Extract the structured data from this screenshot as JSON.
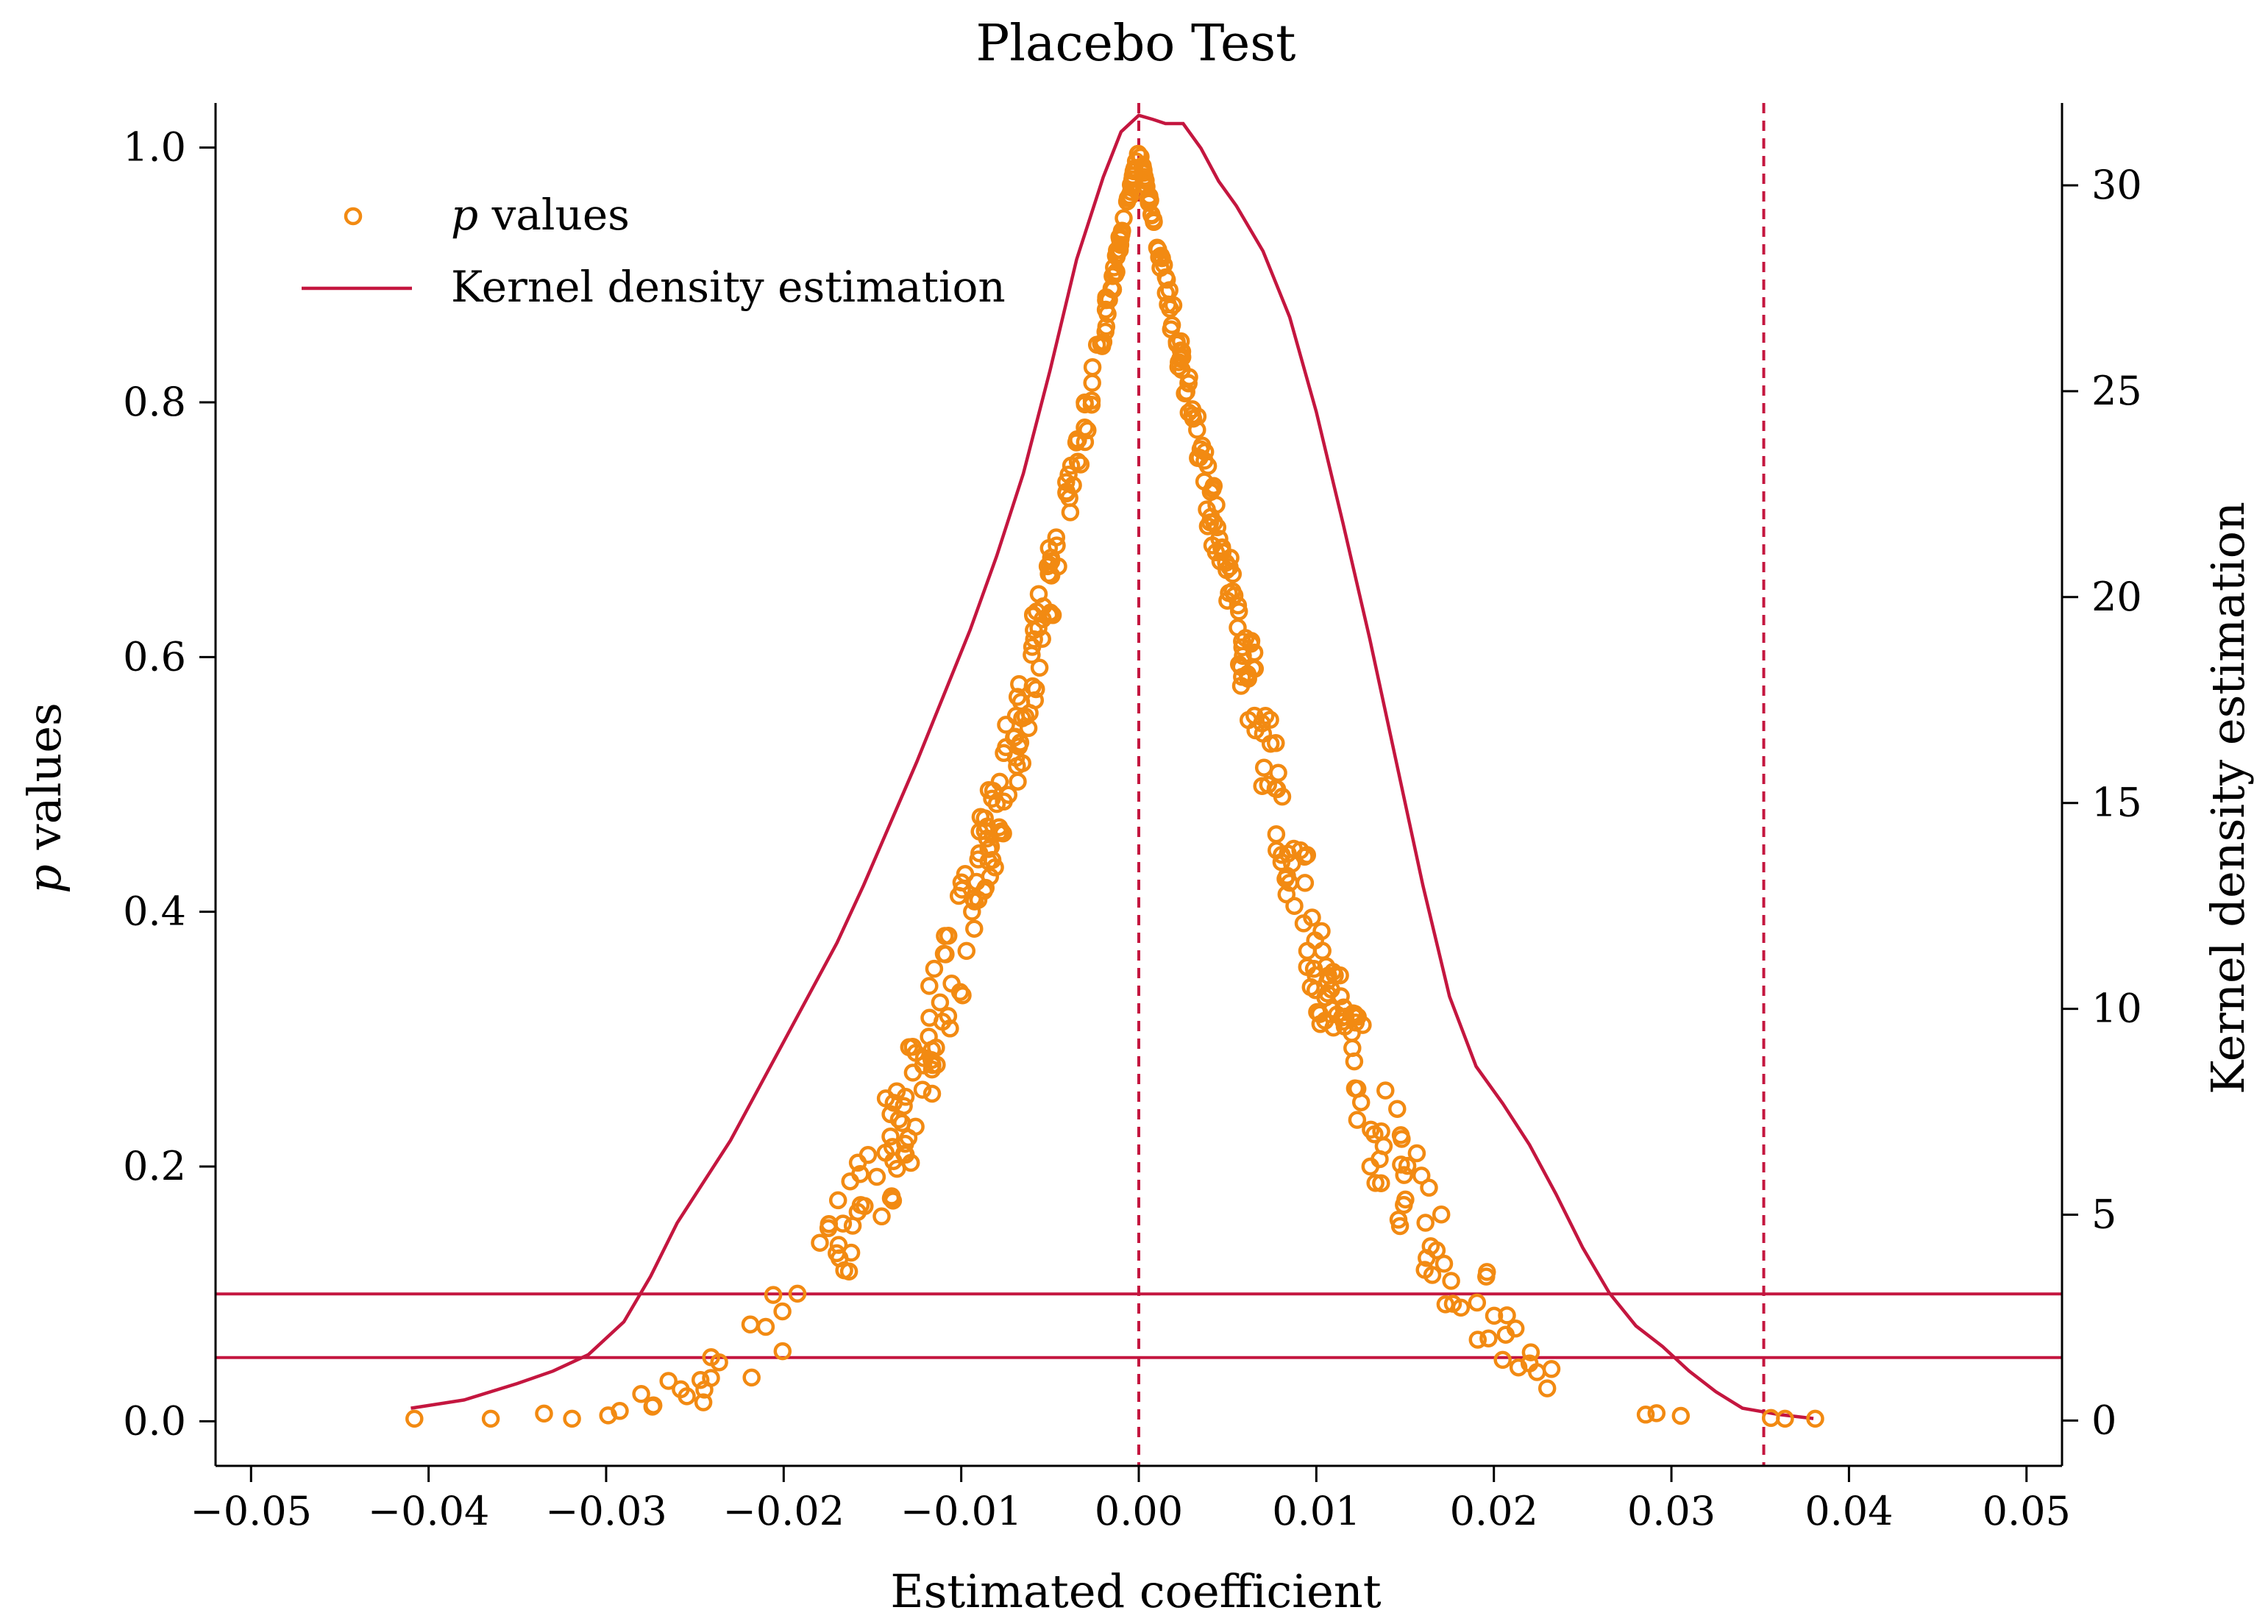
{
  "colors": {
    "points": "#f28a12",
    "kde": "#c4163f",
    "axis": "#000000"
  },
  "chart_data": {
    "type": "scatter",
    "title": "Placebo Test",
    "xlabel": "Estimated coefficient",
    "ylabel_italic": "p",
    "ylabel_rest": " values",
    "y2label": "Kernel density estimation",
    "xlim": [
      -0.052,
      0.052
    ],
    "ylim": [
      -0.035,
      1.035
    ],
    "y2lim": [
      -1.1,
      32.0
    ],
    "xticks": [
      -0.05,
      -0.04,
      -0.03,
      -0.02,
      -0.01,
      0.0,
      0.01,
      0.02,
      0.03,
      0.04,
      0.05
    ],
    "xtick_labels": [
      "−0.05",
      "−0.04",
      "−0.03",
      "−0.02",
      "−0.01",
      "0.00",
      "0.01",
      "0.02",
      "0.03",
      "0.04",
      "0.05"
    ],
    "yticks": [
      0.0,
      0.2,
      0.4,
      0.6,
      0.8,
      1.0
    ],
    "ytick_labels": [
      "0.0",
      "0.2",
      "0.4",
      "0.6",
      "0.8",
      "1.0"
    ],
    "y2ticks": [
      0,
      5,
      10,
      15,
      20,
      25,
      30
    ],
    "y2tick_labels": [
      "0",
      "5",
      "10",
      "15",
      "20",
      "25",
      "30"
    ],
    "legend": {
      "position": "top-left",
      "items": [
        {
          "label_italic": "p",
          "label_rest": " values",
          "kind": "marker"
        },
        {
          "label": "Kernel density estimation",
          "kind": "line"
        }
      ]
    },
    "reference_lines": {
      "horizontal_p": [
        0.1,
        0.05
      ],
      "vertical_x": [
        0.0,
        0.0352
      ]
    },
    "kde_curve": {
      "x": [
        -0.041,
        -0.038,
        -0.035,
        -0.033,
        -0.031,
        -0.029,
        -0.0275,
        -0.026,
        -0.0245,
        -0.023,
        -0.0215,
        -0.02,
        -0.0185,
        -0.017,
        -0.0155,
        -0.014,
        -0.0125,
        -0.011,
        -0.0095,
        -0.008,
        -0.0065,
        -0.005,
        -0.0035,
        -0.002,
        -0.001,
        0.0,
        0.0008,
        0.0015,
        0.0025,
        0.0035,
        0.0045,
        0.0055,
        0.007,
        0.0085,
        0.01,
        0.0115,
        0.013,
        0.0145,
        0.016,
        0.0175,
        0.019,
        0.0205,
        0.022,
        0.0235,
        0.025,
        0.0265,
        0.028,
        0.0295,
        0.031,
        0.0325,
        0.034,
        0.036,
        0.038
      ],
      "density": [
        0.3,
        0.5,
        0.9,
        1.2,
        1.6,
        2.4,
        3.5,
        4.8,
        5.8,
        6.8,
        8.0,
        9.2,
        10.4,
        11.6,
        13.0,
        14.5,
        16.0,
        17.6,
        19.2,
        21.0,
        23.0,
        25.5,
        28.2,
        30.2,
        31.3,
        31.7,
        31.6,
        31.5,
        31.5,
        30.9,
        30.1,
        29.5,
        28.4,
        26.8,
        24.5,
        21.8,
        19.0,
        16.0,
        13.0,
        10.3,
        8.6,
        7.7,
        6.7,
        5.5,
        4.2,
        3.1,
        2.3,
        1.8,
        1.2,
        0.7,
        0.3,
        0.15,
        0.05
      ]
    },
    "series_points_label": "p values"
  }
}
